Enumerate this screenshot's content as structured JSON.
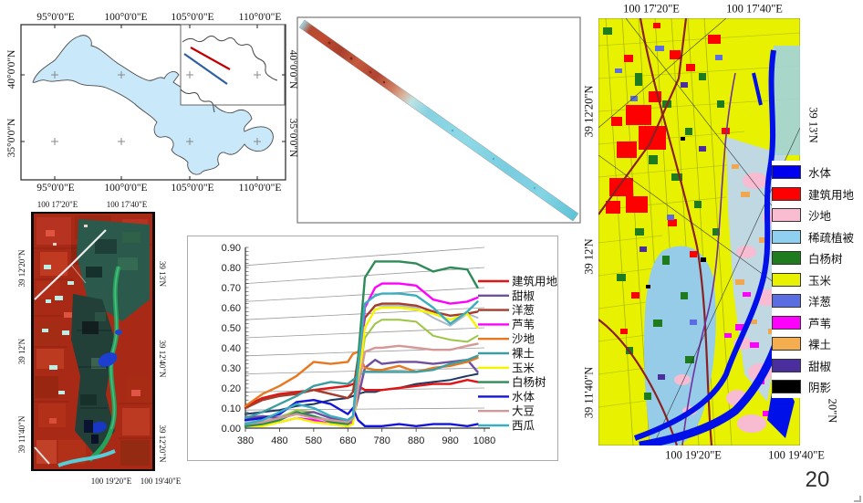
{
  "slide": {
    "page_number": "20"
  },
  "overview_map": {
    "top_ticks": [
      "95°0'0\"E",
      "100°0'0\"E",
      "105°0'0\"E",
      "110°0'0\"E"
    ],
    "bottom_ticks": [
      "95°0'0\"E",
      "100°0'0\"E",
      "105°0'0\"E",
      "110°0'0\"E"
    ],
    "left_ticks": [
      "40°0'0\"N",
      "35°0'0\"N"
    ],
    "right_ticks": [
      "40°0'0\"N",
      "35°0'0\"N"
    ],
    "province_fill": "#c9e8fa",
    "flight_line_colors": {
      "red": "#c00000",
      "blue": "#2e5fa3"
    }
  },
  "swath_panel": {
    "strip_colors": {
      "red_section": "#c14a30",
      "cyan_section": "#7fd0e0"
    }
  },
  "false_color_image": {
    "top_labels": [
      "100 17'20\"E",
      "100 17'40\"E"
    ],
    "bottom_labels": [
      "100 19'20\"E",
      "100 19'40\"E"
    ],
    "left_labels": [
      "39 12'20\"N",
      "39 12'N",
      "39 11'40\"N"
    ],
    "right_labels": [
      "39 13'N",
      "39 12'40\"N",
      "39 12'20\"N"
    ]
  },
  "classified_map": {
    "top_labels": [
      "100 17'20\"E",
      "100 17'40\"E"
    ],
    "bottom_labels": [
      "100 19'20\"E",
      "100 19'40\"E"
    ],
    "left_labels": [
      "39 12'20\"N",
      "39 12'N",
      "39 11'40\"N"
    ],
    "right_labels": [
      "39 13'N",
      "20\"N"
    ],
    "legend": [
      {
        "label": "水体",
        "color": "#0000f0"
      },
      {
        "label": "建筑用地",
        "color": "#fe0000"
      },
      {
        "label": "沙地",
        "color": "#f9bcd0"
      },
      {
        "label": "稀疏植被",
        "color": "#8fd0f0"
      },
      {
        "label": "白杨树",
        "color": "#1e7b1e"
      },
      {
        "label": "玉米",
        "color": "#e8f200"
      },
      {
        "label": "洋葱",
        "color": "#5b6ee1"
      },
      {
        "label": "芦苇",
        "color": "#ff00ff"
      },
      {
        "label": "裸土",
        "color": "#f5ae4f"
      },
      {
        "label": "甜椒",
        "color": "#4b2e9e"
      },
      {
        "label": "阴影",
        "color": "#000000"
      }
    ]
  },
  "chart_data": {
    "type": "line",
    "title": "",
    "xlabel": "",
    "ylabel": "",
    "xlim": [
      380,
      1080
    ],
    "ylim": [
      0,
      0.9
    ],
    "xticks": [
      380,
      480,
      580,
      680,
      780,
      880,
      980,
      1080
    ],
    "yticks": [
      "0.00",
      "0.10",
      "0.20",
      "0.30",
      "0.40",
      "0.50",
      "0.60",
      "0.70",
      "0.80",
      "0.90"
    ],
    "grid": true,
    "legend_position": "right",
    "x": [
      380,
      430,
      480,
      530,
      580,
      630,
      680,
      695,
      710,
      730,
      760,
      780,
      830,
      880,
      930,
      980,
      1030,
      1060
    ],
    "series": [
      {
        "name": "建筑用地",
        "color": "#e01515",
        "values": [
          0.11,
          0.15,
          0.17,
          0.18,
          0.19,
          0.2,
          0.21,
          0.22,
          0.21,
          0.19,
          0.19,
          0.19,
          0.2,
          0.21,
          0.22,
          0.22,
          0.24,
          0.23
        ]
      },
      {
        "name": "甜椒",
        "color": "#6f4fa0",
        "values": [
          0.05,
          0.06,
          0.05,
          0.07,
          0.08,
          0.05,
          0.04,
          0.05,
          0.15,
          0.3,
          0.34,
          0.32,
          0.33,
          0.33,
          0.32,
          0.33,
          0.34,
          0.28
        ]
      },
      {
        "name": "洋葱",
        "color": "#a43d2a",
        "values": [
          0.1,
          0.14,
          0.16,
          0.17,
          0.19,
          0.17,
          0.15,
          0.18,
          0.35,
          0.55,
          0.61,
          0.62,
          0.62,
          0.61,
          0.58,
          0.56,
          0.57,
          0.58
        ]
      },
      {
        "name": "芦苇",
        "color": "#ff00ff",
        "values": [
          0.01,
          0.02,
          0.03,
          0.05,
          0.04,
          0.02,
          0.01,
          0.03,
          0.25,
          0.6,
          0.7,
          0.72,
          0.72,
          0.71,
          0.64,
          0.62,
          0.63,
          0.65
        ]
      },
      {
        "name": "沙地",
        "color": "#e87820",
        "values": [
          0.11,
          0.17,
          0.21,
          0.26,
          0.33,
          0.32,
          0.33,
          0.37,
          0.38,
          0.3,
          0.29,
          0.29,
          0.31,
          0.28,
          0.3,
          0.31,
          0.33,
          0.35
        ]
      },
      {
        "name": "裸土",
        "color": "#3c9ea0",
        "values": [
          0.05,
          0.08,
          0.12,
          0.16,
          0.21,
          0.23,
          0.22,
          0.24,
          0.26,
          0.28,
          0.28,
          0.28,
          0.28,
          0.28,
          0.29,
          0.32,
          0.34,
          0.36
        ]
      },
      {
        "name": "玉米",
        "color": "#f5f500",
        "values": [
          0.01,
          0.01,
          0.03,
          0.05,
          0.03,
          0.02,
          0.01,
          0.02,
          0.2,
          0.5,
          0.59,
          0.6,
          0.6,
          0.59,
          0.57,
          0.54,
          0.57,
          0.5
        ]
      },
      {
        "name": "白杨树",
        "color": "#2e8b57",
        "values": [
          0.01,
          0.02,
          0.04,
          0.08,
          0.06,
          0.03,
          0.02,
          0.05,
          0.35,
          0.75,
          0.83,
          0.83,
          0.83,
          0.82,
          0.78,
          0.8,
          0.79,
          0.7
        ]
      },
      {
        "name": "水体",
        "color": "#1515d8",
        "values": [
          0.04,
          0.05,
          0.07,
          0.13,
          0.14,
          0.12,
          0.07,
          0.1,
          0.04,
          0.01,
          0.01,
          0.01,
          0.02,
          0.01,
          0.02,
          0.02,
          0.01,
          0.02
        ]
      },
      {
        "name": "大豆",
        "color": "#d49898",
        "values": [
          0.02,
          0.03,
          0.05,
          0.07,
          0.05,
          0.04,
          0.03,
          0.05,
          0.2,
          0.38,
          0.4,
          0.4,
          0.41,
          0.4,
          0.39,
          0.39,
          0.41,
          0.42
        ]
      },
      {
        "name": "西瓜",
        "color": "#38aec0",
        "values": [
          0.02,
          0.04,
          0.08,
          0.12,
          0.1,
          0.06,
          0.04,
          0.06,
          0.3,
          0.62,
          0.66,
          0.67,
          0.67,
          0.66,
          0.6,
          0.52,
          0.58,
          0.63
        ]
      }
    ],
    "extra_series": [
      {
        "name": "",
        "color": "#1f3864",
        "values": [
          0.07,
          0.08,
          0.09,
          0.11,
          0.12,
          0.14,
          0.15,
          0.16,
          0.17,
          0.18,
          0.18,
          0.19,
          0.2,
          0.22,
          0.23,
          0.24,
          0.26,
          0.27
        ]
      },
      {
        "name": "",
        "color": "#afb8c8",
        "values": [
          0.03,
          0.04,
          0.06,
          0.08,
          0.06,
          0.04,
          0.03,
          0.05,
          0.25,
          0.55,
          0.61,
          0.61,
          0.61,
          0.6,
          0.55,
          0.51,
          0.57,
          0.55
        ]
      },
      {
        "name": "",
        "color": "#9dc544",
        "values": [
          0.02,
          0.03,
          0.05,
          0.09,
          0.08,
          0.05,
          0.03,
          0.04,
          0.22,
          0.45,
          0.52,
          0.54,
          0.54,
          0.53,
          0.46,
          0.44,
          0.43,
          0.46
        ]
      }
    ]
  }
}
